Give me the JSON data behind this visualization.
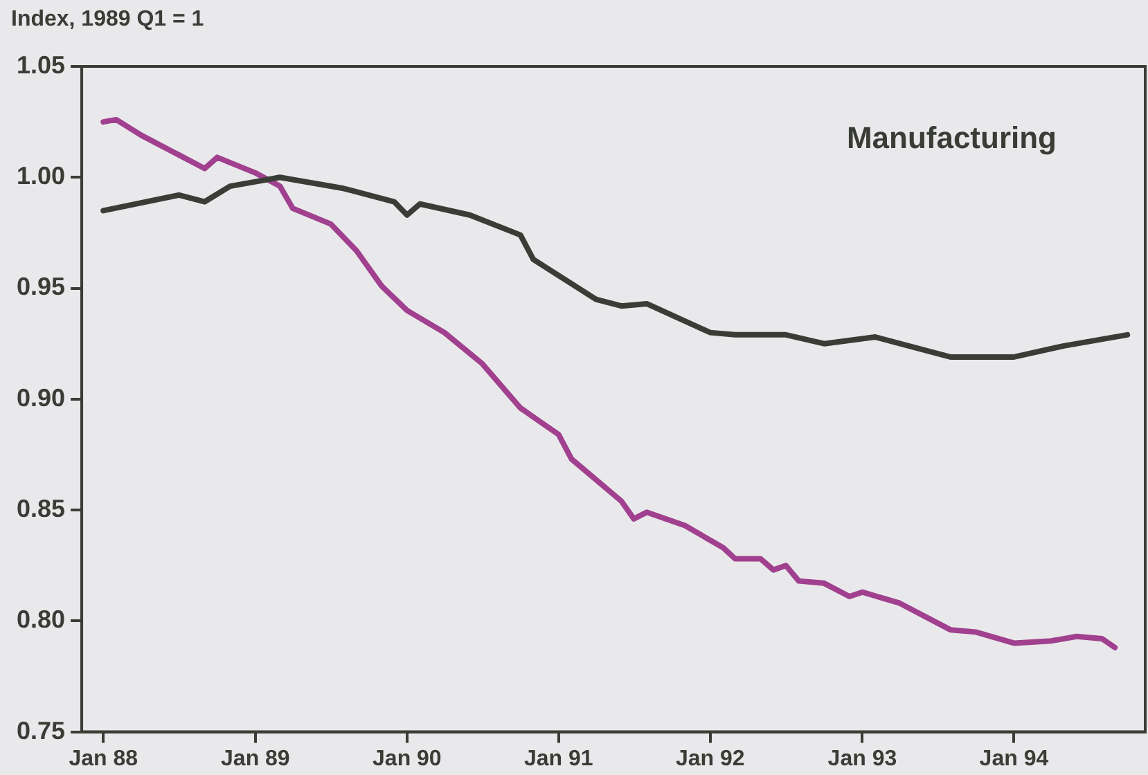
{
  "chart_data": {
    "type": "line",
    "ylabel": "Index, 1989 Q1 = 1",
    "annotations": [
      "Manufacturing"
    ],
    "xlim": [
      "1987-11-10",
      "1994-11-13"
    ],
    "xticks": [
      {
        "value": "1988-01",
        "label": "Jan 88"
      },
      {
        "value": "1989-01",
        "label": "Jan 89"
      },
      {
        "value": "1990-01",
        "label": "Jan 90"
      },
      {
        "value": "1991-01",
        "label": "Jan 91"
      },
      {
        "value": "1992-01",
        "label": "Jan 92"
      },
      {
        "value": "1993-01",
        "label": "Jan 93"
      },
      {
        "value": "1994-01",
        "label": "Jan 94"
      }
    ],
    "ylim": [
      0.75,
      1.05
    ],
    "yticks": [
      {
        "value": 0.75,
        "label": "0.75"
      },
      {
        "value": 0.8,
        "label": "0.80"
      },
      {
        "value": 0.85,
        "label": "0.85"
      },
      {
        "value": 0.9,
        "label": "0.90"
      },
      {
        "value": 0.95,
        "label": "0.95"
      },
      {
        "value": 1,
        "label": "1.00"
      },
      {
        "value": 1.05,
        "label": "1.05"
      }
    ],
    "grid": false,
    "series": [
      {
        "color": "#3a3d36",
        "x": [
          "1988-01",
          "1988-07",
          "1988-09",
          "1988-11",
          "1989-01",
          "1989-03",
          "1989-08",
          "1989-12",
          "1990-01",
          "1990-02",
          "1990-06",
          "1990-10",
          "1990-11",
          "1991-04",
          "1991-06",
          "1991-08",
          "1992-01",
          "1992-03",
          "1992-07",
          "1992-10",
          "1993-02",
          "1993-08",
          "1994-01",
          "1994-05",
          "1994-10"
        ],
        "values": [
          0.985,
          0.992,
          0.989,
          0.996,
          0.998,
          1.0,
          0.995,
          0.989,
          0.983,
          0.988,
          0.983,
          0.974,
          0.963,
          0.945,
          0.942,
          0.943,
          0.93,
          0.929,
          0.929,
          0.925,
          0.928,
          0.919,
          0.919,
          0.924,
          0.929
        ]
      },
      {
        "color": "#a0408f",
        "x": [
          "1988-01",
          "1988-02",
          "1988-04",
          "1988-09",
          "1988-10",
          "1989-01",
          "1989-03",
          "1989-04",
          "1989-07",
          "1989-09",
          "1989-11",
          "1990-01",
          "1990-04",
          "1990-07",
          "1990-10",
          "1991-01",
          "1991-02",
          "1991-06",
          "1991-07",
          "1991-08",
          "1991-11",
          "1992-02",
          "1992-03",
          "1992-05",
          "1992-06",
          "1992-07",
          "1992-08",
          "1992-10",
          "1992-12",
          "1993-01",
          "1993-04",
          "1993-08",
          "1993-10",
          "1994-01",
          "1994-04",
          "1994-06",
          "1994-08",
          "1994-09"
        ],
        "values": [
          1.025,
          1.026,
          1.019,
          1.004,
          1.009,
          1.002,
          0.996,
          0.986,
          0.979,
          0.967,
          0.951,
          0.94,
          0.93,
          0.916,
          0.896,
          0.884,
          0.873,
          0.854,
          0.846,
          0.849,
          0.843,
          0.833,
          0.828,
          0.828,
          0.823,
          0.825,
          0.818,
          0.817,
          0.811,
          0.813,
          0.808,
          0.796,
          0.795,
          0.79,
          0.791,
          0.793,
          0.792,
          0.788
        ]
      }
    ]
  }
}
